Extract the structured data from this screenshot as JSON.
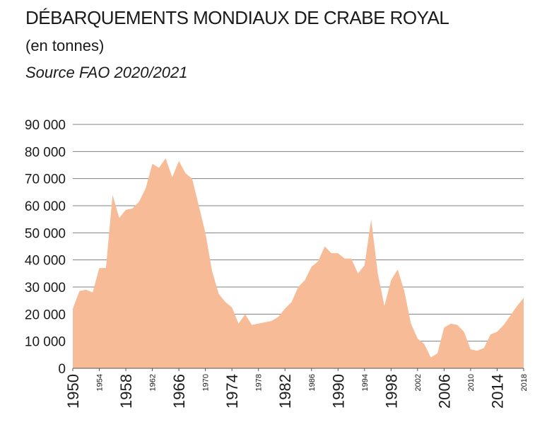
{
  "chart_data": {
    "type": "area",
    "title": "DÉBARQUEMENTS MONDIAUX DE CRABE ROYAL",
    "subtitle": "(en tonnes)",
    "source": "Source FAO 2020/2021",
    "xlabel": "",
    "ylabel": "",
    "xlim": [
      1950,
      2018
    ],
    "ylim": [
      0,
      90000
    ],
    "grid": true,
    "fill_color": "#f7bc97",
    "grid_color": "#808080",
    "yticks": [
      {
        "value": 0,
        "label": "0"
      },
      {
        "value": 10000,
        "label": "10 000"
      },
      {
        "value": 20000,
        "label": "20 000"
      },
      {
        "value": 30000,
        "label": "30 000"
      },
      {
        "value": 40000,
        "label": "40 000"
      },
      {
        "value": 50000,
        "label": "50 000"
      },
      {
        "value": 60000,
        "label": "60 000"
      },
      {
        "value": 70000,
        "label": "70 000"
      },
      {
        "value": 80000,
        "label": "80 000"
      },
      {
        "value": 90000,
        "label": "90 000"
      }
    ],
    "xticks": [
      {
        "value": 1950,
        "label": "1950",
        "major": true
      },
      {
        "value": 1954,
        "label": "1954",
        "major": false
      },
      {
        "value": 1958,
        "label": "1958",
        "major": true
      },
      {
        "value": 1962,
        "label": "1962",
        "major": false
      },
      {
        "value": 1966,
        "label": "1966",
        "major": true
      },
      {
        "value": 1970,
        "label": "1970",
        "major": false
      },
      {
        "value": 1974,
        "label": "1974",
        "major": true
      },
      {
        "value": 1978,
        "label": "1978",
        "major": false
      },
      {
        "value": 1982,
        "label": "1982",
        "major": true
      },
      {
        "value": 1986,
        "label": "1986",
        "major": false
      },
      {
        "value": 1990,
        "label": "1990",
        "major": true
      },
      {
        "value": 1994,
        "label": "1994",
        "major": false
      },
      {
        "value": 1998,
        "label": "1998",
        "major": true
      },
      {
        "value": 2002,
        "label": "2002",
        "major": false
      },
      {
        "value": 2006,
        "label": "2006",
        "major": true
      },
      {
        "value": 2010,
        "label": "2010",
        "major": false
      },
      {
        "value": 2014,
        "label": "2014",
        "major": true
      },
      {
        "value": 2018,
        "label": "2018",
        "major": false
      }
    ],
    "x": [
      1950,
      1951,
      1952,
      1953,
      1954,
      1955,
      1956,
      1957,
      1958,
      1959,
      1960,
      1961,
      1962,
      1963,
      1964,
      1965,
      1966,
      1967,
      1968,
      1969,
      1970,
      1971,
      1972,
      1973,
      1974,
      1975,
      1976,
      1977,
      1978,
      1979,
      1980,
      1981,
      1982,
      1983,
      1984,
      1985,
      1986,
      1987,
      1988,
      1989,
      1990,
      1991,
      1992,
      1993,
      1994,
      1995,
      1996,
      1997,
      1998,
      1999,
      2000,
      2001,
      2002,
      2003,
      2004,
      2005,
      2006,
      2007,
      2008,
      2009,
      2010,
      2011,
      2012,
      2013,
      2014,
      2015,
      2016,
      2017,
      2018
    ],
    "values": [
      22000,
      28500,
      29000,
      28000,
      37000,
      37000,
      64000,
      55500,
      58500,
      59000,
      61500,
      66500,
      75500,
      74000,
      77500,
      70500,
      76500,
      72000,
      70000,
      60000,
      50000,
      36000,
      27500,
      24500,
      22500,
      16500,
      20000,
      16000,
      16500,
      17000,
      17500,
      19000,
      22000,
      24500,
      30000,
      32500,
      37500,
      39500,
      45000,
      42500,
      42500,
      40500,
      40500,
      35000,
      38000,
      55000,
      35000,
      23000,
      32500,
      36500,
      28500,
      16500,
      11000,
      9000,
      4000,
      5500,
      15000,
      16500,
      16000,
      13500,
      7000,
      6500,
      7500,
      12500,
      13500,
      16000,
      19500,
      23000,
      26000
    ]
  }
}
